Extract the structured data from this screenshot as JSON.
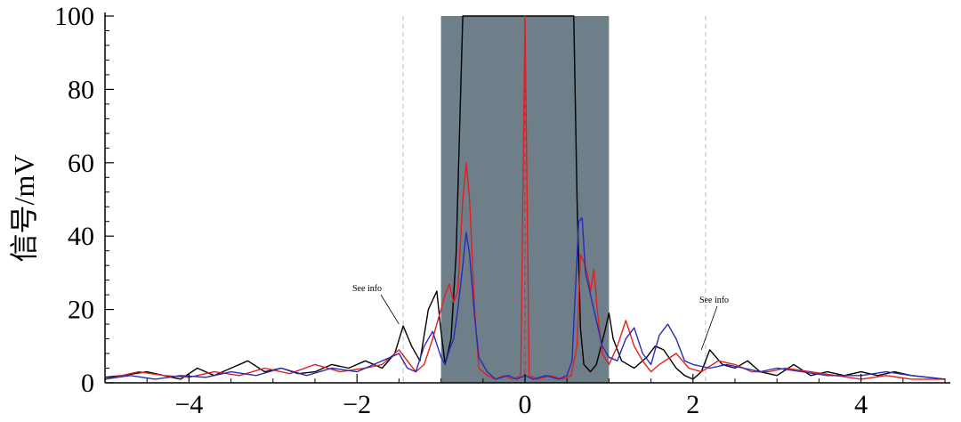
{
  "chart_data": {
    "type": "line",
    "title": "",
    "xlabel": "",
    "ylabel": "信号/mV",
    "xlim": [
      -5,
      5
    ],
    "ylim": [
      0,
      100
    ],
    "x_ticks": [
      -4,
      -2,
      0,
      2,
      4
    ],
    "x_tick_labels": [
      "−4",
      "−2",
      "0",
      "2",
      "4"
    ],
    "y_ticks": [
      0,
      20,
      40,
      60,
      80,
      100
    ],
    "y_tick_labels": [
      "0",
      "20",
      "40",
      "60",
      "80",
      "100"
    ],
    "grid": false,
    "shaded_region": {
      "x0": -1.0,
      "x1": 1.0,
      "color": "#6e7f8a"
    },
    "reference_lines": [
      {
        "x": -1.45,
        "style": "dashed",
        "color": "#bbbbbb"
      },
      {
        "x": 2.15,
        "style": "dashed",
        "color": "#bbbbbb"
      },
      {
        "x": 0,
        "style": "dashed",
        "color": "#e02020"
      }
    ],
    "annotations": [
      {
        "text": "See info",
        "x": -1.5,
        "y": 16
      },
      {
        "text": "See info",
        "x": 2.1,
        "y": 9
      }
    ],
    "series": [
      {
        "color": "#000000",
        "points": [
          [
            -5,
            1.5
          ],
          [
            -4.8,
            2
          ],
          [
            -4.5,
            3
          ],
          [
            -4.3,
            2
          ],
          [
            -4.1,
            1
          ],
          [
            -3.9,
            4
          ],
          [
            -3.7,
            2
          ],
          [
            -3.5,
            4
          ],
          [
            -3.3,
            6
          ],
          [
            -3.1,
            3
          ],
          [
            -2.9,
            4
          ],
          [
            -2.7,
            2.5
          ],
          [
            -2.5,
            3
          ],
          [
            -2.3,
            5
          ],
          [
            -2.1,
            4
          ],
          [
            -1.9,
            6
          ],
          [
            -1.7,
            4
          ],
          [
            -1.55,
            8
          ],
          [
            -1.45,
            15.5
          ],
          [
            -1.35,
            10
          ],
          [
            -1.25,
            6
          ],
          [
            -1.15,
            20
          ],
          [
            -1.05,
            25
          ],
          [
            -1.0,
            14
          ],
          [
            -0.95,
            5
          ],
          [
            -0.88,
            12
          ],
          [
            -0.82,
            35
          ],
          [
            -0.74,
            100
          ],
          [
            -0.5,
            100
          ],
          [
            -0.2,
            100
          ],
          [
            0,
            100
          ],
          [
            0.2,
            100
          ],
          [
            0.45,
            100
          ],
          [
            0.58,
            100
          ],
          [
            0.62,
            50
          ],
          [
            0.66,
            15
          ],
          [
            0.7,
            5
          ],
          [
            0.78,
            3
          ],
          [
            0.85,
            5
          ],
          [
            0.95,
            14
          ],
          [
            1.0,
            19
          ],
          [
            1.05,
            12
          ],
          [
            1.15,
            6
          ],
          [
            1.3,
            4
          ],
          [
            1.45,
            7
          ],
          [
            1.55,
            10
          ],
          [
            1.65,
            9
          ],
          [
            1.8,
            4
          ],
          [
            1.9,
            2
          ],
          [
            2.0,
            1
          ],
          [
            2.1,
            3
          ],
          [
            2.2,
            9
          ],
          [
            2.35,
            5
          ],
          [
            2.5,
            4
          ],
          [
            2.65,
            6
          ],
          [
            2.8,
            3
          ],
          [
            3.0,
            2
          ],
          [
            3.2,
            5
          ],
          [
            3.4,
            2
          ],
          [
            3.6,
            3
          ],
          [
            3.8,
            2
          ],
          [
            4.0,
            3
          ],
          [
            4.2,
            2
          ],
          [
            4.4,
            3
          ],
          [
            4.6,
            2
          ],
          [
            4.8,
            1.5
          ],
          [
            5.0,
            1
          ]
        ]
      },
      {
        "color": "#e02020",
        "points": [
          [
            -5,
            1
          ],
          [
            -4.6,
            3
          ],
          [
            -4.3,
            2
          ],
          [
            -4.0,
            1.5
          ],
          [
            -3.7,
            3
          ],
          [
            -3.4,
            2
          ],
          [
            -3.1,
            4
          ],
          [
            -2.8,
            2.5
          ],
          [
            -2.5,
            5
          ],
          [
            -2.2,
            3
          ],
          [
            -1.9,
            4
          ],
          [
            -1.7,
            5
          ],
          [
            -1.5,
            9
          ],
          [
            -1.4,
            6
          ],
          [
            -1.3,
            3
          ],
          [
            -1.2,
            5
          ],
          [
            -1.1,
            12
          ],
          [
            -1.0,
            20
          ],
          [
            -0.95,
            24
          ],
          [
            -0.9,
            27
          ],
          [
            -0.85,
            22
          ],
          [
            -0.8,
            25
          ],
          [
            -0.74,
            50
          ],
          [
            -0.7,
            60
          ],
          [
            -0.66,
            50
          ],
          [
            -0.6,
            20
          ],
          [
            -0.55,
            4
          ],
          [
            -0.45,
            2
          ],
          [
            -0.35,
            1
          ],
          [
            -0.25,
            2
          ],
          [
            -0.15,
            1
          ],
          [
            -0.05,
            2
          ],
          [
            0,
            100
          ],
          [
            0.05,
            2
          ],
          [
            0.15,
            1
          ],
          [
            0.3,
            2
          ],
          [
            0.45,
            1
          ],
          [
            0.55,
            2
          ],
          [
            0.62,
            10
          ],
          [
            0.66,
            35
          ],
          [
            0.7,
            33
          ],
          [
            0.74,
            30
          ],
          [
            0.78,
            25
          ],
          [
            0.82,
            31
          ],
          [
            0.86,
            20
          ],
          [
            0.92,
            8
          ],
          [
            1.0,
            5
          ],
          [
            1.1,
            10
          ],
          [
            1.2,
            17
          ],
          [
            1.3,
            10
          ],
          [
            1.4,
            6
          ],
          [
            1.5,
            3
          ],
          [
            1.6,
            5
          ],
          [
            1.8,
            8
          ],
          [
            1.95,
            4
          ],
          [
            2.1,
            3
          ],
          [
            2.3,
            6
          ],
          [
            2.5,
            5
          ],
          [
            2.7,
            3
          ],
          [
            2.9,
            3
          ],
          [
            3.1,
            4
          ],
          [
            3.4,
            3
          ],
          [
            3.7,
            2
          ],
          [
            4.0,
            1
          ],
          [
            4.3,
            2
          ],
          [
            4.6,
            1
          ],
          [
            5.0,
            1
          ]
        ]
      },
      {
        "color": "#2a2ab8",
        "points": [
          [
            -5,
            1
          ],
          [
            -4.7,
            2
          ],
          [
            -4.4,
            1
          ],
          [
            -4.1,
            2
          ],
          [
            -3.8,
            1.5
          ],
          [
            -3.5,
            3
          ],
          [
            -3.2,
            2
          ],
          [
            -2.9,
            4
          ],
          [
            -2.6,
            2
          ],
          [
            -2.3,
            4
          ],
          [
            -2.0,
            3
          ],
          [
            -1.8,
            5
          ],
          [
            -1.6,
            7
          ],
          [
            -1.5,
            8
          ],
          [
            -1.4,
            4
          ],
          [
            -1.3,
            3
          ],
          [
            -1.2,
            10
          ],
          [
            -1.1,
            14
          ],
          [
            -1.0,
            7
          ],
          [
            -0.95,
            5
          ],
          [
            -0.9,
            9
          ],
          [
            -0.85,
            12
          ],
          [
            -0.8,
            20
          ],
          [
            -0.74,
            32
          ],
          [
            -0.7,
            41
          ],
          [
            -0.66,
            35
          ],
          [
            -0.6,
            18
          ],
          [
            -0.55,
            7
          ],
          [
            -0.45,
            3
          ],
          [
            -0.35,
            1
          ],
          [
            -0.2,
            2
          ],
          [
            -0.1,
            1
          ],
          [
            0,
            2
          ],
          [
            0.1,
            1
          ],
          [
            0.25,
            2
          ],
          [
            0.4,
            1
          ],
          [
            0.5,
            2
          ],
          [
            0.56,
            6
          ],
          [
            0.6,
            25
          ],
          [
            0.64,
            44
          ],
          [
            0.68,
            45
          ],
          [
            0.72,
            30
          ],
          [
            0.8,
            22
          ],
          [
            0.86,
            16
          ],
          [
            0.92,
            10
          ],
          [
            1.0,
            7
          ],
          [
            1.1,
            6
          ],
          [
            1.2,
            12
          ],
          [
            1.3,
            15
          ],
          [
            1.4,
            8
          ],
          [
            1.5,
            5
          ],
          [
            1.6,
            13
          ],
          [
            1.7,
            16
          ],
          [
            1.8,
            12
          ],
          [
            1.9,
            6
          ],
          [
            2.0,
            5
          ],
          [
            2.2,
            4
          ],
          [
            2.4,
            5
          ],
          [
            2.6,
            4
          ],
          [
            2.8,
            3
          ],
          [
            3.0,
            4
          ],
          [
            3.3,
            3
          ],
          [
            3.6,
            2
          ],
          [
            4.0,
            2
          ],
          [
            4.3,
            3
          ],
          [
            4.6,
            2
          ],
          [
            5.0,
            1
          ]
        ]
      }
    ]
  }
}
